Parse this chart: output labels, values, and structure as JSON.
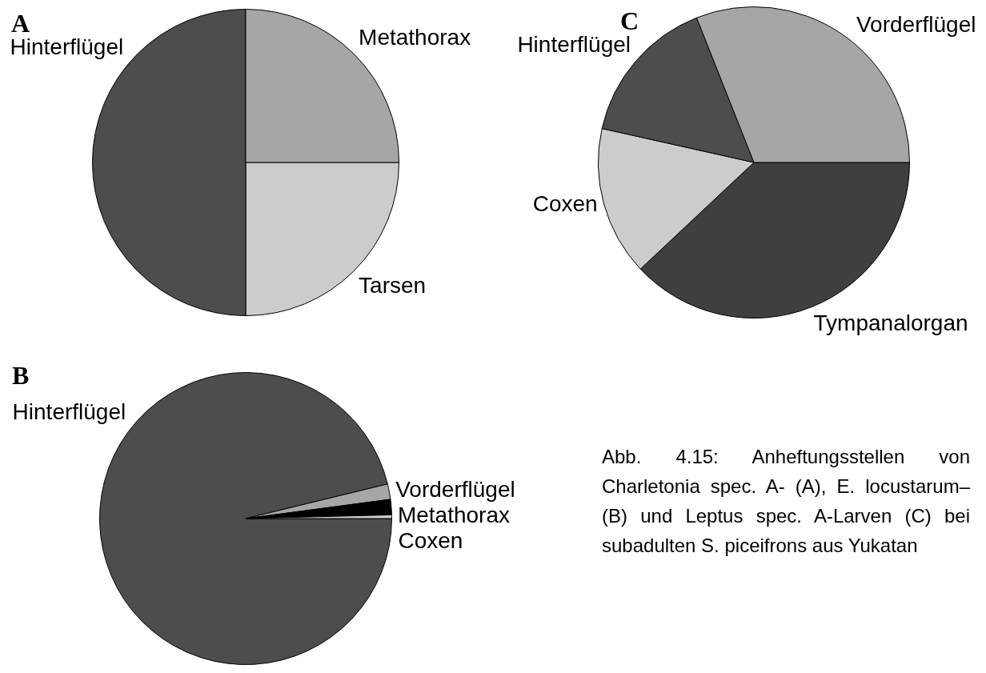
{
  "chart_data": [
    {
      "type": "pie",
      "title": "A",
      "categories": [
        "Tarsen",
        "Hinterflügel",
        "Metathorax"
      ],
      "values": [
        25,
        50,
        25
      ],
      "colors": [
        "#cccccc",
        "#4d4d4d",
        "#a6a6a6"
      ]
    },
    {
      "type": "pie",
      "title": "C",
      "categories": [
        "Tympanalorgan",
        "Coxen",
        "Hinterflügel",
        "Vorderflügel"
      ],
      "values": [
        38,
        15.5,
        15.5,
        31
      ],
      "colors": [
        "#3f3f3f",
        "#cccccc",
        "#4d4d4d",
        "#a6a6a6"
      ]
    },
    {
      "type": "pie",
      "title": "B",
      "categories": [
        "Hinterflügel",
        "Vorderflügel",
        "Metathorax",
        "Coxen"
      ],
      "values": [
        96.2,
        1.7,
        1.7,
        0.4
      ],
      "colors": [
        "#4d4d4d",
        "#a6a6a6",
        "#000000",
        "#cccccc"
      ],
      "annotations": [
        "Abb. 4.15: Anheftungsstellen von Charletonia spec. A- (A), E. locustarum– (B) und Leptus spec. A-Larven (C) bei subadulten S. piceifrons aus Yukatan"
      ]
    }
  ]
}
